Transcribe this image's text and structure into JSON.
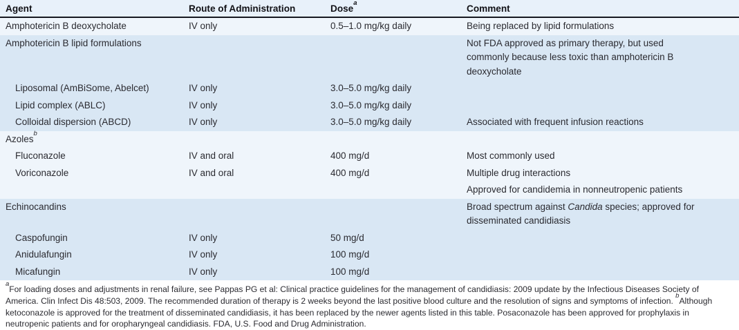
{
  "colors": {
    "header-bg": "#e8f1fa",
    "band-light": "#eff5fb",
    "band-dark": "#d9e7f4",
    "header-rule": "#15171f",
    "text": "#2a2a30"
  },
  "table": {
    "columns": [
      {
        "label": "Agent",
        "sup": ""
      },
      {
        "label": "Route of Administration",
        "sup": ""
      },
      {
        "label": "Dose",
        "sup": "a"
      },
      {
        "label": "Comment",
        "sup": ""
      }
    ],
    "rows": [
      {
        "agent": "Amphotericin B deoxycholate",
        "route": "IV only",
        "dose": "0.5–1.0 mg/kg daily",
        "comment": "Being replaced by lipid formulations"
      },
      {
        "agent": "Amphotericin B lipid formulations",
        "route": "",
        "dose": "",
        "comment": "Not FDA approved as primary therapy, but used commonly because less toxic than amphotericin B deoxycholate"
      },
      {
        "agent": "Liposomal (AmBiSome, Abelcet)",
        "route": "IV only",
        "dose": "3.0–5.0 mg/kg daily",
        "comment": ""
      },
      {
        "agent": "Lipid complex (ABLC)",
        "route": "IV only",
        "dose": "3.0–5.0 mg/kg daily",
        "comment": ""
      },
      {
        "agent": "Colloidal dispersion (ABCD)",
        "route": "IV only",
        "dose": "3.0–5.0 mg/kg daily",
        "comment": "Associated with frequent infusion reactions"
      },
      {
        "agent": "Azoles",
        "agent_sup": "b",
        "route": "",
        "dose": "",
        "comment": ""
      },
      {
        "agent": "Fluconazole",
        "route": "IV and oral",
        "dose": "400 mg/d",
        "comment": "Most commonly used"
      },
      {
        "agent": "Voriconazole",
        "route": "IV and oral",
        "dose": "400 mg/d",
        "comment": "Multiple drug interactions"
      },
      {
        "agent": "",
        "route": "",
        "dose": "",
        "comment": "Approved for candidemia in nonneutropenic patients"
      },
      {
        "agent": "Echinocandins",
        "route": "",
        "dose": "",
        "comment_pre": "Broad spectrum against ",
        "comment_italic": "Candida",
        "comment_post": " species; approved for disseminated candidiasis"
      },
      {
        "agent": "Caspofungin",
        "route": "IV only",
        "dose": "50 mg/d",
        "comment": ""
      },
      {
        "agent": "Anidulafungin",
        "route": "IV only",
        "dose": "100 mg/d",
        "comment": ""
      },
      {
        "agent": "Micafungin",
        "route": "IV only",
        "dose": "100 mg/d",
        "comment": ""
      }
    ]
  },
  "footnote": {
    "note_a_marker": "a",
    "note_a": "For loading doses and adjustments in renal failure, see Pappas PG et al: Clinical practice guidelines for the management of candidiasis: 2009 update by the Infectious Diseases Society of America. Clin Infect Dis 48:503, 2009. The recommended duration of therapy is 2 weeks beyond the last positive blood culture and the resolution of signs and symptoms of infection. ",
    "note_b_marker": "b",
    "note_b": "Although ketoconazole is approved for the treatment of disseminated candidiasis, it has been replaced by the newer agents listed in this table. Posaconazole has been approved for prophylaxis in neutropenic patients and for oropharyngeal candidiasis. ",
    "abbreviation": "FDA, U.S. Food and Drug Administration."
  }
}
